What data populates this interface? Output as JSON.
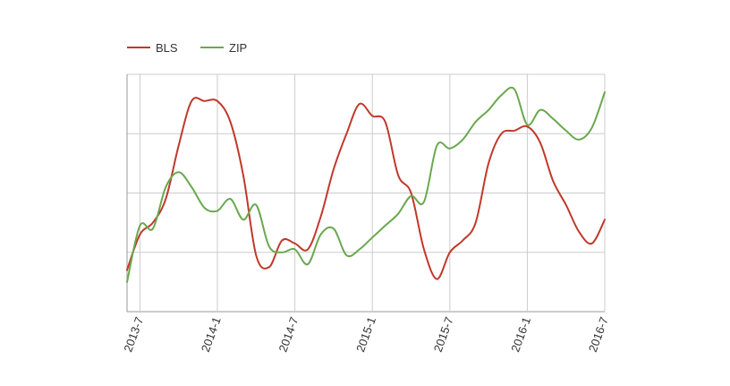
{
  "chart_data": {
    "type": "line",
    "legend_position": "top-left",
    "grid": true,
    "x_ticks": [
      "2013-7",
      "2014-1",
      "2014-7",
      "2015-1",
      "2015-7",
      "2016-1",
      "2016-7"
    ],
    "x_range": [
      "2013-6",
      "2016-7"
    ],
    "y_range": [
      0,
      4
    ],
    "y_axis_labels": false,
    "series": [
      {
        "name": "BLS",
        "color": "#c0392b",
        "points": [
          [
            "2013-6",
            0.7
          ],
          [
            "2013-7",
            1.3
          ],
          [
            "2013-8",
            1.5
          ],
          [
            "2013-9",
            1.9
          ],
          [
            "2013-10",
            2.8
          ],
          [
            "2013-11",
            3.55
          ],
          [
            "2013-12",
            3.55
          ],
          [
            "2014-1",
            3.55
          ],
          [
            "2014-2",
            3.2
          ],
          [
            "2014-3",
            2.3
          ],
          [
            "2014-4",
            0.95
          ],
          [
            "2014-5",
            0.75
          ],
          [
            "2014-6",
            1.2
          ],
          [
            "2014-7",
            1.15
          ],
          [
            "2014-8",
            1.05
          ],
          [
            "2014-9",
            1.6
          ],
          [
            "2014-10",
            2.4
          ],
          [
            "2014-11",
            3.0
          ],
          [
            "2014-12",
            3.5
          ],
          [
            "2015-1",
            3.3
          ],
          [
            "2015-2",
            3.2
          ],
          [
            "2015-3",
            2.3
          ],
          [
            "2015-4",
            2.0
          ],
          [
            "2015-5",
            1.05
          ],
          [
            "2015-6",
            0.55
          ],
          [
            "2015-7",
            1.0
          ],
          [
            "2015-8",
            1.2
          ],
          [
            "2015-9",
            1.5
          ],
          [
            "2015-10",
            2.5
          ],
          [
            "2015-11",
            3.0
          ],
          [
            "2015-12",
            3.05
          ],
          [
            "2016-1",
            3.12
          ],
          [
            "2016-2",
            2.85
          ],
          [
            "2016-3",
            2.2
          ],
          [
            "2016-4",
            1.8
          ],
          [
            "2016-5",
            1.35
          ],
          [
            "2016-6",
            1.15
          ],
          [
            "2016-7",
            1.55
          ]
        ]
      },
      {
        "name": "ZIP",
        "color": "#6aa84f",
        "points": [
          [
            "2013-6",
            0.5
          ],
          [
            "2013-7",
            1.45
          ],
          [
            "2013-8",
            1.4
          ],
          [
            "2013-9",
            2.1
          ],
          [
            "2013-10",
            2.35
          ],
          [
            "2013-11",
            2.1
          ],
          [
            "2013-12",
            1.75
          ],
          [
            "2014-1",
            1.7
          ],
          [
            "2014-2",
            1.9
          ],
          [
            "2014-3",
            1.55
          ],
          [
            "2014-4",
            1.8
          ],
          [
            "2014-5",
            1.1
          ],
          [
            "2014-6",
            1.0
          ],
          [
            "2014-7",
            1.05
          ],
          [
            "2014-8",
            0.8
          ],
          [
            "2014-9",
            1.3
          ],
          [
            "2014-10",
            1.4
          ],
          [
            "2014-11",
            0.95
          ],
          [
            "2014-12",
            1.05
          ],
          [
            "2015-1",
            1.25
          ],
          [
            "2015-2",
            1.45
          ],
          [
            "2015-3",
            1.65
          ],
          [
            "2015-4",
            1.95
          ],
          [
            "2015-5",
            1.85
          ],
          [
            "2015-6",
            2.8
          ],
          [
            "2015-7",
            2.75
          ],
          [
            "2015-8",
            2.9
          ],
          [
            "2015-9",
            3.2
          ],
          [
            "2015-10",
            3.4
          ],
          [
            "2015-11",
            3.65
          ],
          [
            "2015-12",
            3.75
          ],
          [
            "2016-1",
            3.15
          ],
          [
            "2016-2",
            3.4
          ],
          [
            "2016-3",
            3.25
          ],
          [
            "2016-4",
            3.05
          ],
          [
            "2016-5",
            2.9
          ],
          [
            "2016-6",
            3.1
          ],
          [
            "2016-7",
            3.7
          ]
        ]
      }
    ]
  }
}
